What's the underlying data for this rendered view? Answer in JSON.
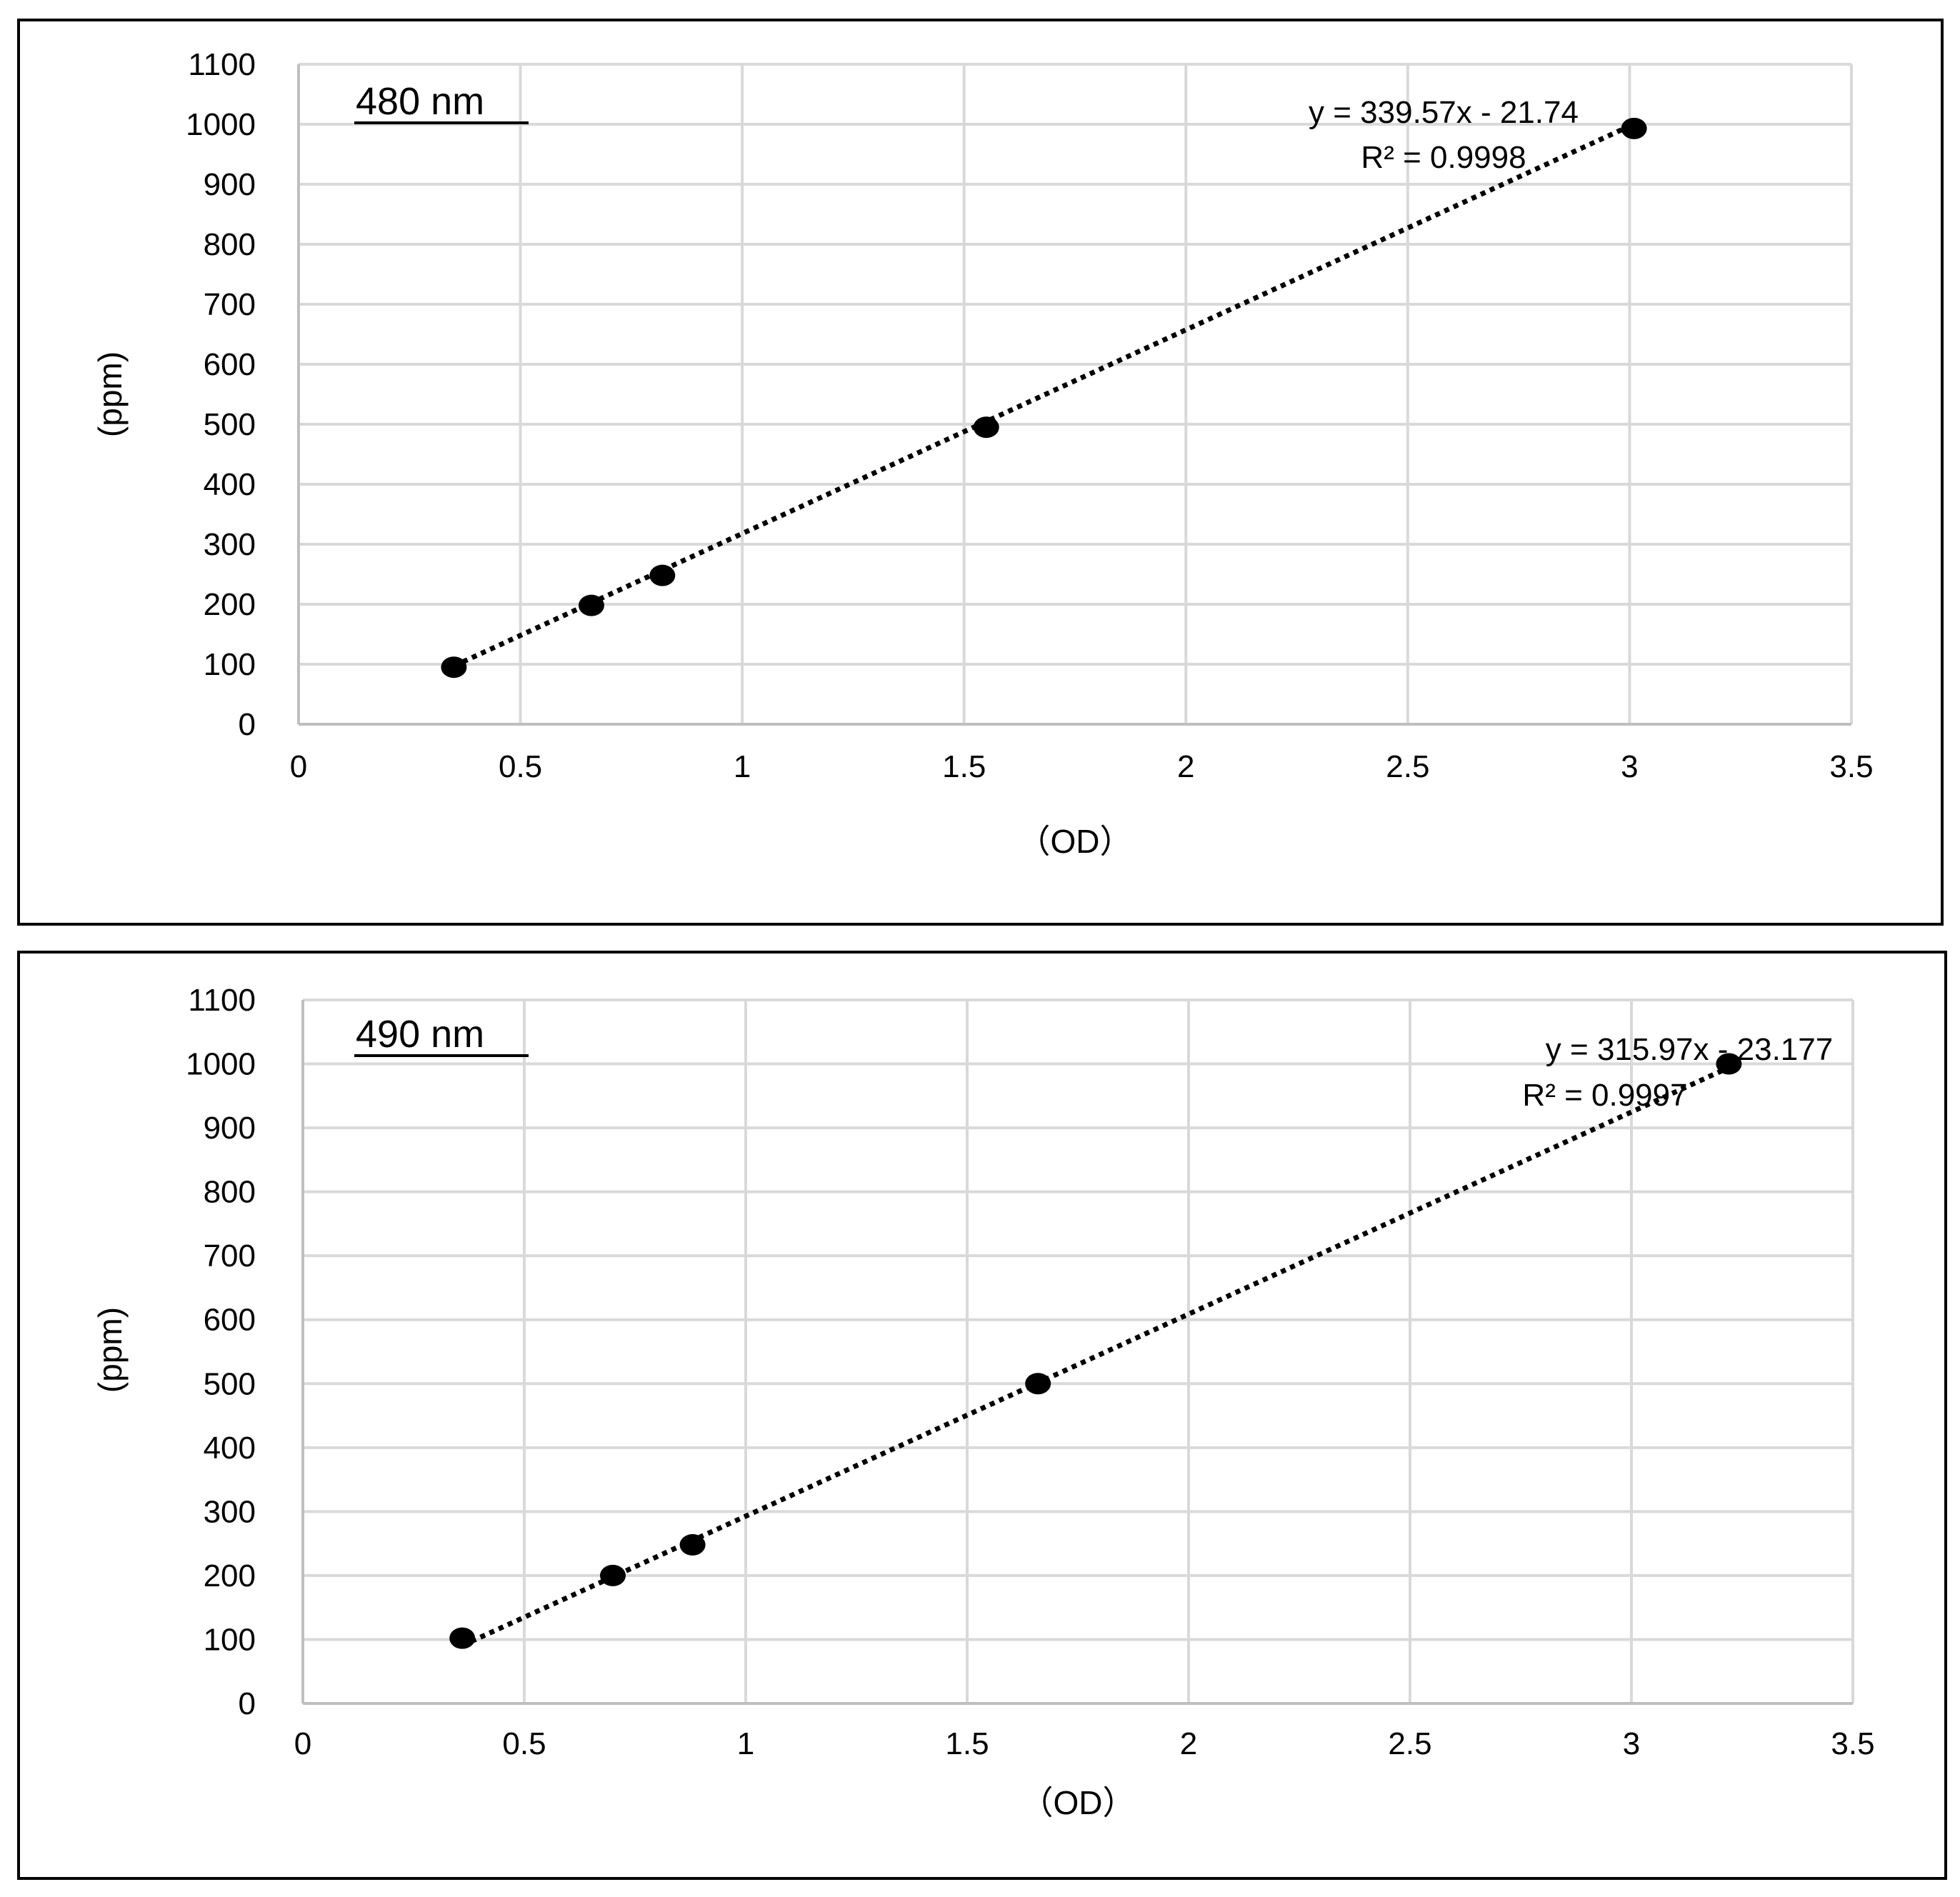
{
  "chart_data": [
    {
      "type": "scatter",
      "title": "480 nm",
      "xlabel": "（OD）",
      "ylabel": "(ppm)",
      "xlim": [
        0,
        3.5
      ],
      "ylim": [
        0,
        1100
      ],
      "x_ticks": [
        "0",
        "0.5",
        "1",
        "1.5",
        "2",
        "2.5",
        "3",
        "3.5"
      ],
      "y_ticks": [
        "0",
        "100",
        "200",
        "300",
        "400",
        "500",
        "600",
        "700",
        "800",
        "900",
        "1000",
        "1100"
      ],
      "grid": true,
      "marker_color": "#000000",
      "series": [
        {
          "x": [
            0.35,
            0.66,
            0.82,
            1.55,
            3.01
          ],
          "y": [
            95,
            198,
            248,
            495,
            993
          ]
        }
      ],
      "trendline": {
        "style": "dotted",
        "slope": 339.57,
        "intercept": -21.74,
        "x_range": [
          0.35,
          3.01
        ],
        "equation": "y = 339.57x - 21.74",
        "r_squared": "R² = 0.9998"
      }
    },
    {
      "type": "scatter",
      "title": "490 nm",
      "xlabel": "（OD）",
      "ylabel": "(ppm)",
      "xlim": [
        0,
        3.5
      ],
      "ylim": [
        0,
        1100
      ],
      "x_ticks": [
        "0",
        "0.5",
        "1",
        "1.5",
        "2",
        "2.5",
        "3",
        "3.5"
      ],
      "y_ticks": [
        "0",
        "100",
        "200",
        "300",
        "400",
        "500",
        "600",
        "700",
        "800",
        "900",
        "1000",
        "1100"
      ],
      "grid": true,
      "marker_color": "#000000",
      "series": [
        {
          "x": [
            0.36,
            0.7,
            0.88,
            1.66,
            3.22
          ],
          "y": [
            102,
            200,
            248,
            500,
            1000
          ]
        }
      ],
      "trendline": {
        "style": "dotted",
        "slope": 315.97,
        "intercept": -23.177,
        "x_range": [
          0.36,
          3.22
        ],
        "equation": "y = 315.97x - 23.177",
        "r_squared": "R² = 0.9997"
      }
    }
  ]
}
